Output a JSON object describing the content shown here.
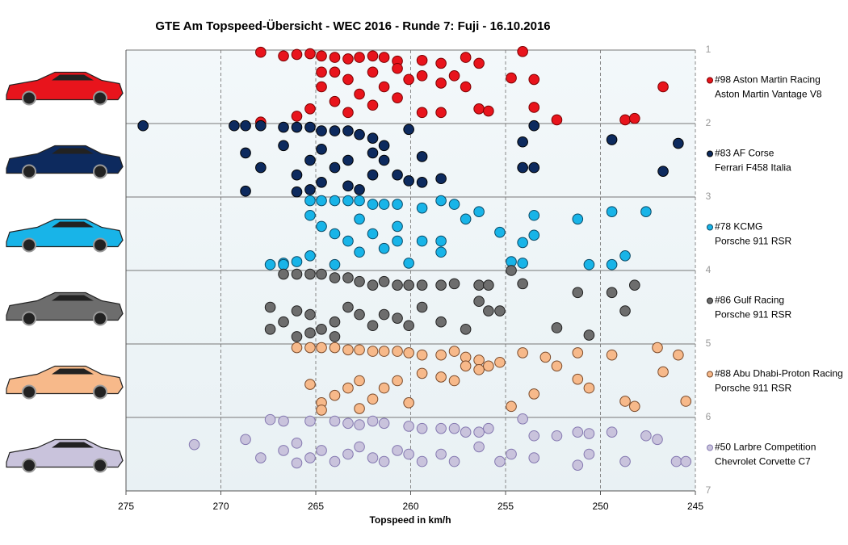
{
  "chart_data": {
    "type": "scatter",
    "title": "GTE Am  Topspeed-Übersicht  - WEC 2016 - Runde 7: Fuji - 16.10.2016",
    "x_label": "Topspeed in km/h",
    "xlim": [
      275,
      245
    ],
    "xticks": [
      275,
      270,
      265,
      260,
      255,
      250,
      245
    ],
    "ylim": [
      1,
      7
    ],
    "yticks": [
      1,
      2,
      3,
      4,
      5,
      6,
      7
    ],
    "y_reversed": true,
    "grid": true,
    "legend": "right",
    "series": [
      {
        "name": "#98 Aston Martin Racing",
        "car": "Aston Martin Vantage V8",
        "color": "#e8141c",
        "stroke": "#7a0000",
        "x": [
          267.9,
          266.7,
          266.0,
          265.3,
          264.7,
          264.0,
          263.3,
          262.7,
          262.0,
          261.4,
          260.7,
          259.4,
          258.4,
          257.1,
          256.4,
          254.1,
          266.0,
          265.3,
          264.7,
          264.7,
          264.0,
          263.3,
          263.3,
          262.7,
          262.0,
          262.0,
          261.4,
          260.7,
          260.7,
          260.1,
          259.4,
          259.4,
          258.4,
          257.7,
          257.1,
          256.4,
          254.7,
          253.5,
          253.5,
          252.3,
          246.7,
          248.7,
          248.2,
          267.9,
          264.0,
          258.4,
          255.9
        ],
        "y": [
          1.03,
          1.08,
          1.06,
          1.05,
          1.08,
          1.1,
          1.12,
          1.1,
          1.08,
          1.1,
          1.15,
          1.14,
          1.18,
          1.1,
          1.18,
          1.02,
          1.9,
          1.8,
          1.5,
          1.3,
          1.7,
          1.4,
          1.85,
          1.6,
          1.3,
          1.75,
          1.5,
          1.25,
          1.65,
          1.4,
          1.85,
          1.35,
          1.45,
          1.35,
          1.5,
          1.8,
          1.38,
          1.4,
          1.78,
          1.95,
          1.5,
          1.95,
          1.93,
          1.98,
          1.3,
          1.85,
          1.83
        ]
      },
      {
        "name": "#83 AF Corse",
        "car": "Ferrari F458 Italia",
        "color": "#0d2a5e",
        "stroke": "#000000",
        "x": [
          274.1,
          269.3,
          268.7,
          267.9,
          266.7,
          266.0,
          265.3,
          264.7,
          264.0,
          263.3,
          262.7,
          262.0,
          261.4,
          260.1,
          259.4,
          268.7,
          267.9,
          266.7,
          266.0,
          265.3,
          264.7,
          264.0,
          263.3,
          262.7,
          262.0,
          261.4,
          260.7,
          260.1,
          259.4,
          258.4,
          254.1,
          254.1,
          253.5,
          253.5,
          249.4,
          245.9,
          246.7,
          268.7,
          266.0,
          265.3,
          264.7,
          263.3,
          262.0
        ],
        "y": [
          2.03,
          2.03,
          2.03,
          2.03,
          2.05,
          2.05,
          2.05,
          2.1,
          2.1,
          2.1,
          2.15,
          2.2,
          2.3,
          2.08,
          2.45,
          2.4,
          2.6,
          2.3,
          2.7,
          2.5,
          2.8,
          2.6,
          2.5,
          2.9,
          2.7,
          2.5,
          2.7,
          2.78,
          2.8,
          2.75,
          2.25,
          2.6,
          2.03,
          2.6,
          2.22,
          2.27,
          2.65,
          2.92,
          2.93,
          2.9,
          2.35,
          2.85,
          2.4
        ]
      },
      {
        "name": "#78 KCMG",
        "car": "Porsche 911 RSR",
        "color": "#18b4e8",
        "stroke": "#0a4a66",
        "x": [
          265.3,
          264.7,
          264.0,
          263.3,
          262.7,
          262.0,
          261.4,
          260.7,
          259.4,
          258.4,
          257.7,
          265.3,
          264.7,
          264.0,
          263.3,
          262.7,
          262.0,
          261.4,
          260.7,
          260.1,
          259.4,
          258.4,
          258.4,
          257.1,
          256.4,
          255.3,
          254.7,
          254.1,
          253.5,
          254.1,
          253.5,
          251.2,
          249.4,
          247.6,
          249.4,
          248.7,
          250.6,
          267.4,
          266.7,
          266.0,
          265.3,
          264.0,
          266.7,
          260.7,
          262.7
        ],
        "y": [
          3.05,
          3.05,
          3.05,
          3.05,
          3.05,
          3.1,
          3.1,
          3.1,
          3.15,
          3.05,
          3.1,
          3.25,
          3.4,
          3.5,
          3.6,
          3.3,
          3.5,
          3.7,
          3.4,
          3.9,
          3.6,
          3.6,
          3.75,
          3.3,
          3.2,
          3.48,
          3.88,
          3.9,
          3.25,
          3.62,
          3.52,
          3.3,
          3.92,
          3.2,
          3.2,
          3.8,
          3.92,
          3.92,
          3.9,
          3.88,
          3.8,
          3.92,
          3.92,
          3.6,
          3.75
        ]
      },
      {
        "name": "#86 Gulf Racing",
        "car": "Porsche 911 RSR",
        "color": "#6d6d6d",
        "stroke": "#222222",
        "x": [
          266.7,
          266.0,
          265.3,
          264.7,
          264.0,
          263.3,
          262.7,
          262.0,
          261.4,
          260.7,
          260.1,
          259.4,
          258.4,
          257.7,
          256.4,
          255.9,
          254.7,
          254.1,
          251.2,
          249.4,
          248.2,
          248.7,
          267.4,
          266.7,
          266.0,
          265.3,
          264.7,
          264.0,
          263.3,
          262.7,
          262.0,
          261.4,
          260.7,
          260.1,
          259.4,
          258.4,
          257.1,
          256.4,
          255.9,
          255.3,
          252.3,
          250.6,
          267.4,
          266.0,
          265.3,
          264.0
        ],
        "y": [
          4.05,
          4.05,
          4.05,
          4.05,
          4.1,
          4.1,
          4.15,
          4.2,
          4.15,
          4.2,
          4.2,
          4.2,
          4.2,
          4.18,
          4.2,
          4.2,
          4.0,
          4.18,
          4.3,
          4.3,
          4.2,
          4.55,
          4.5,
          4.7,
          4.55,
          4.6,
          4.8,
          4.7,
          4.5,
          4.6,
          4.75,
          4.6,
          4.65,
          4.75,
          4.5,
          4.7,
          4.8,
          4.42,
          4.55,
          4.55,
          4.78,
          4.88,
          4.8,
          4.9,
          4.85,
          4.9
        ]
      },
      {
        "name": "#88 Abu Dhabi-Proton Racing",
        "car": "Porsche 911 RSR",
        "color": "#f7b98a",
        "stroke": "#7a4a2a",
        "x": [
          266.0,
          265.3,
          264.7,
          264.0,
          263.3,
          262.7,
          262.0,
          261.4,
          260.7,
          260.1,
          259.4,
          258.4,
          257.7,
          257.1,
          256.4,
          255.3,
          254.1,
          252.9,
          251.2,
          249.4,
          247.0,
          245.9,
          265.3,
          264.7,
          264.0,
          263.3,
          262.7,
          262.0,
          261.4,
          260.7,
          260.1,
          259.4,
          258.4,
          257.7,
          257.1,
          256.4,
          255.9,
          254.7,
          253.5,
          252.3,
          251.2,
          250.6,
          248.7,
          248.2,
          246.7,
          245.5,
          264.7,
          262.7
        ],
        "y": [
          5.05,
          5.05,
          5.05,
          5.05,
          5.08,
          5.08,
          5.1,
          5.1,
          5.1,
          5.12,
          5.15,
          5.15,
          5.1,
          5.18,
          5.22,
          5.25,
          5.12,
          5.18,
          5.12,
          5.15,
          5.05,
          5.15,
          5.55,
          5.8,
          5.7,
          5.6,
          5.5,
          5.75,
          5.6,
          5.5,
          5.8,
          5.4,
          5.45,
          5.5,
          5.3,
          5.35,
          5.3,
          5.85,
          5.68,
          5.3,
          5.48,
          5.6,
          5.78,
          5.85,
          5.38,
          5.78,
          5.9,
          5.88
        ]
      },
      {
        "name": "#50 Larbre Competition",
        "car": "Chevrolet Corvette C7",
        "color": "#c9c3dc",
        "stroke": "#8478b0",
        "x": [
          267.4,
          266.7,
          265.3,
          264.0,
          263.3,
          262.7,
          262.0,
          261.4,
          260.1,
          259.4,
          258.4,
          257.7,
          257.1,
          256.4,
          255.9,
          254.1,
          253.5,
          252.3,
          251.2,
          250.6,
          249.4,
          247.6,
          247.0,
          271.4,
          268.7,
          266.7,
          266.0,
          265.3,
          264.7,
          264.0,
          263.3,
          262.7,
          262.0,
          261.4,
          260.7,
          260.1,
          259.4,
          258.4,
          257.7,
          256.4,
          255.3,
          254.7,
          253.5,
          251.2,
          250.6,
          248.7,
          246.0,
          245.5,
          267.9,
          266.0
        ],
        "y": [
          6.03,
          6.05,
          6.05,
          6.05,
          6.08,
          6.1,
          6.05,
          6.08,
          6.12,
          6.15,
          6.15,
          6.15,
          6.2,
          6.2,
          6.15,
          6.02,
          6.25,
          6.25,
          6.2,
          6.22,
          6.2,
          6.25,
          6.3,
          6.37,
          6.3,
          6.45,
          6.35,
          6.55,
          6.45,
          6.6,
          6.5,
          6.4,
          6.55,
          6.6,
          6.45,
          6.5,
          6.6,
          6.5,
          6.6,
          6.4,
          6.6,
          6.5,
          6.55,
          6.65,
          6.5,
          6.6,
          6.6,
          6.6,
          6.55,
          6.62
        ]
      }
    ]
  }
}
